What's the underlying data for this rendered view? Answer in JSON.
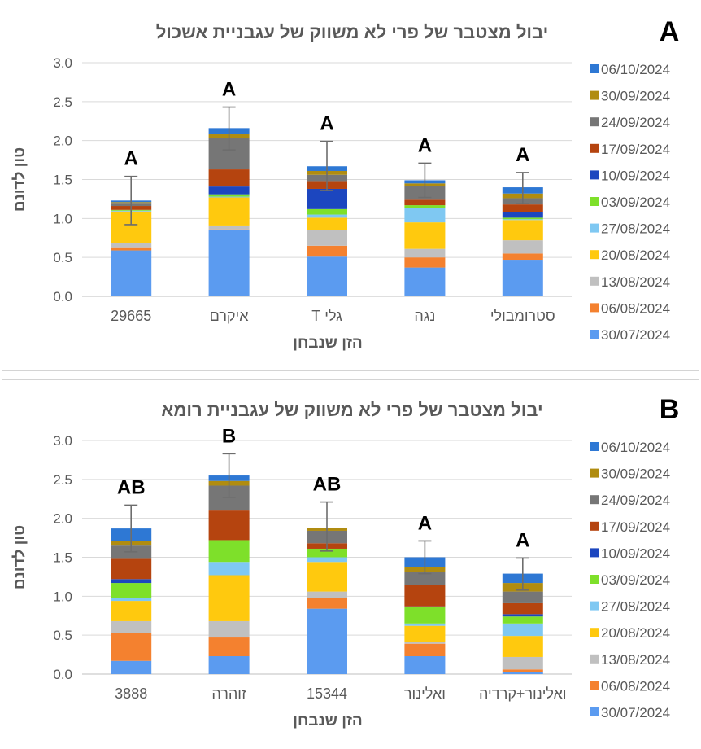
{
  "legend_dates": [
    "06/10/2024",
    "30/09/2024",
    "24/09/2024",
    "17/09/2024",
    "10/09/2024",
    "03/09/2024",
    "27/08/2024",
    "20/08/2024",
    "13/08/2024",
    "06/08/2024",
    "30/07/2024"
  ],
  "colors": {
    "30/07/2024": "#5b9bf0",
    "06/08/2024": "#f4812f",
    "13/08/2024": "#c0c0c0",
    "20/08/2024": "#ffc90e",
    "27/08/2024": "#7fc8f2",
    "03/09/2024": "#7ee02a",
    "10/09/2024": "#1c46bf",
    "17/09/2024": "#b5440f",
    "24/09/2024": "#767676",
    "30/09/2024": "#b08c10",
    "06/10/2024": "#2e78d4"
  },
  "chart_data": [
    {
      "panel": "A",
      "type": "bar",
      "stacked": true,
      "title": "יבול מצטבר של פרי לא משווק של עגבניית אשכול",
      "xlabel": "הזן שנבחן",
      "ylabel": "טון לדונם",
      "ylim": [
        0,
        3.0
      ],
      "yticks": [
        "3.0",
        "2.5",
        "2.0",
        "1.5",
        "1.0",
        "0.5",
        "0.0"
      ],
      "categories": [
        "29665",
        "איקרם",
        "גלי T",
        "נגה",
        "סטרומבולי"
      ],
      "significance": [
        "A",
        "A",
        "A",
        "A",
        "A"
      ],
      "error_high": [
        1.54,
        2.43,
        1.99,
        1.71,
        1.59
      ],
      "error_low": [
        0.92,
        1.88,
        1.36,
        1.27,
        1.19
      ],
      "series": [
        {
          "name": "30/07/2024",
          "values": [
            0.59,
            0.85,
            0.51,
            0.37,
            0.47
          ]
        },
        {
          "name": "06/08/2024",
          "values": [
            0.03,
            0.01,
            0.14,
            0.13,
            0.08
          ]
        },
        {
          "name": "13/08/2024",
          "values": [
            0.07,
            0.05,
            0.2,
            0.11,
            0.17
          ]
        },
        {
          "name": "20/08/2024",
          "values": [
            0.4,
            0.36,
            0.16,
            0.34,
            0.26
          ]
        },
        {
          "name": "27/08/2024",
          "values": [
            0.01,
            0.01,
            0.04,
            0.18,
            0.01
          ]
        },
        {
          "name": "03/09/2024",
          "values": [
            0.01,
            0.03,
            0.07,
            0.04,
            0.02
          ]
        },
        {
          "name": "10/09/2024",
          "values": [
            0.0,
            0.1,
            0.26,
            0.0,
            0.07
          ]
        },
        {
          "name": "17/09/2024",
          "values": [
            0.05,
            0.22,
            0.1,
            0.07,
            0.1
          ]
        },
        {
          "name": "24/09/2024",
          "values": [
            0.04,
            0.4,
            0.08,
            0.18,
            0.08
          ]
        },
        {
          "name": "30/09/2024",
          "values": [
            0.01,
            0.05,
            0.05,
            0.03,
            0.06
          ]
        },
        {
          "name": "06/10/2024",
          "values": [
            0.02,
            0.08,
            0.06,
            0.04,
            0.08
          ]
        }
      ]
    },
    {
      "panel": "B",
      "type": "bar",
      "stacked": true,
      "title": "יבול מצטבר של פרי לא משווק של עגבניית רומא",
      "xlabel": "הזן שנבחן",
      "ylabel": "טון לדונם",
      "ylim": [
        0,
        3.0
      ],
      "yticks": [
        "3.0",
        "2.5",
        "2.0",
        "1.5",
        "1.0",
        "0.5",
        "0.0"
      ],
      "categories": [
        "3888",
        "זוהרה",
        "15344",
        "ואלינור",
        "ואלינור+קרדיה"
      ],
      "significance": [
        "AB",
        "B",
        "AB",
        "A",
        "A"
      ],
      "error_high": [
        2.17,
        2.83,
        2.21,
        1.71,
        1.49
      ],
      "error_low": [
        1.57,
        2.27,
        1.58,
        1.29,
        1.08
      ],
      "series": [
        {
          "name": "30/07/2024",
          "values": [
            0.17,
            0.23,
            0.84,
            0.23,
            0.03
          ]
        },
        {
          "name": "06/08/2024",
          "values": [
            0.36,
            0.24,
            0.14,
            0.16,
            0.03
          ]
        },
        {
          "name": "13/08/2024",
          "values": [
            0.15,
            0.21,
            0.08,
            0.02,
            0.16
          ]
        },
        {
          "name": "20/08/2024",
          "values": [
            0.26,
            0.59,
            0.38,
            0.21,
            0.27
          ]
        },
        {
          "name": "27/08/2024",
          "values": [
            0.04,
            0.17,
            0.06,
            0.03,
            0.16
          ]
        },
        {
          "name": "03/09/2024",
          "values": [
            0.19,
            0.28,
            0.11,
            0.21,
            0.09
          ]
        },
        {
          "name": "10/09/2024",
          "values": [
            0.05,
            0.0,
            0.0,
            0.01,
            0.03
          ]
        },
        {
          "name": "17/09/2024",
          "values": [
            0.26,
            0.38,
            0.07,
            0.27,
            0.14
          ]
        },
        {
          "name": "24/09/2024",
          "values": [
            0.17,
            0.32,
            0.16,
            0.17,
            0.15
          ]
        },
        {
          "name": "30/09/2024",
          "values": [
            0.06,
            0.06,
            0.04,
            0.06,
            0.11
          ]
        },
        {
          "name": "06/10/2024",
          "values": [
            0.16,
            0.07,
            0.0,
            0.13,
            0.12
          ]
        }
      ]
    }
  ]
}
